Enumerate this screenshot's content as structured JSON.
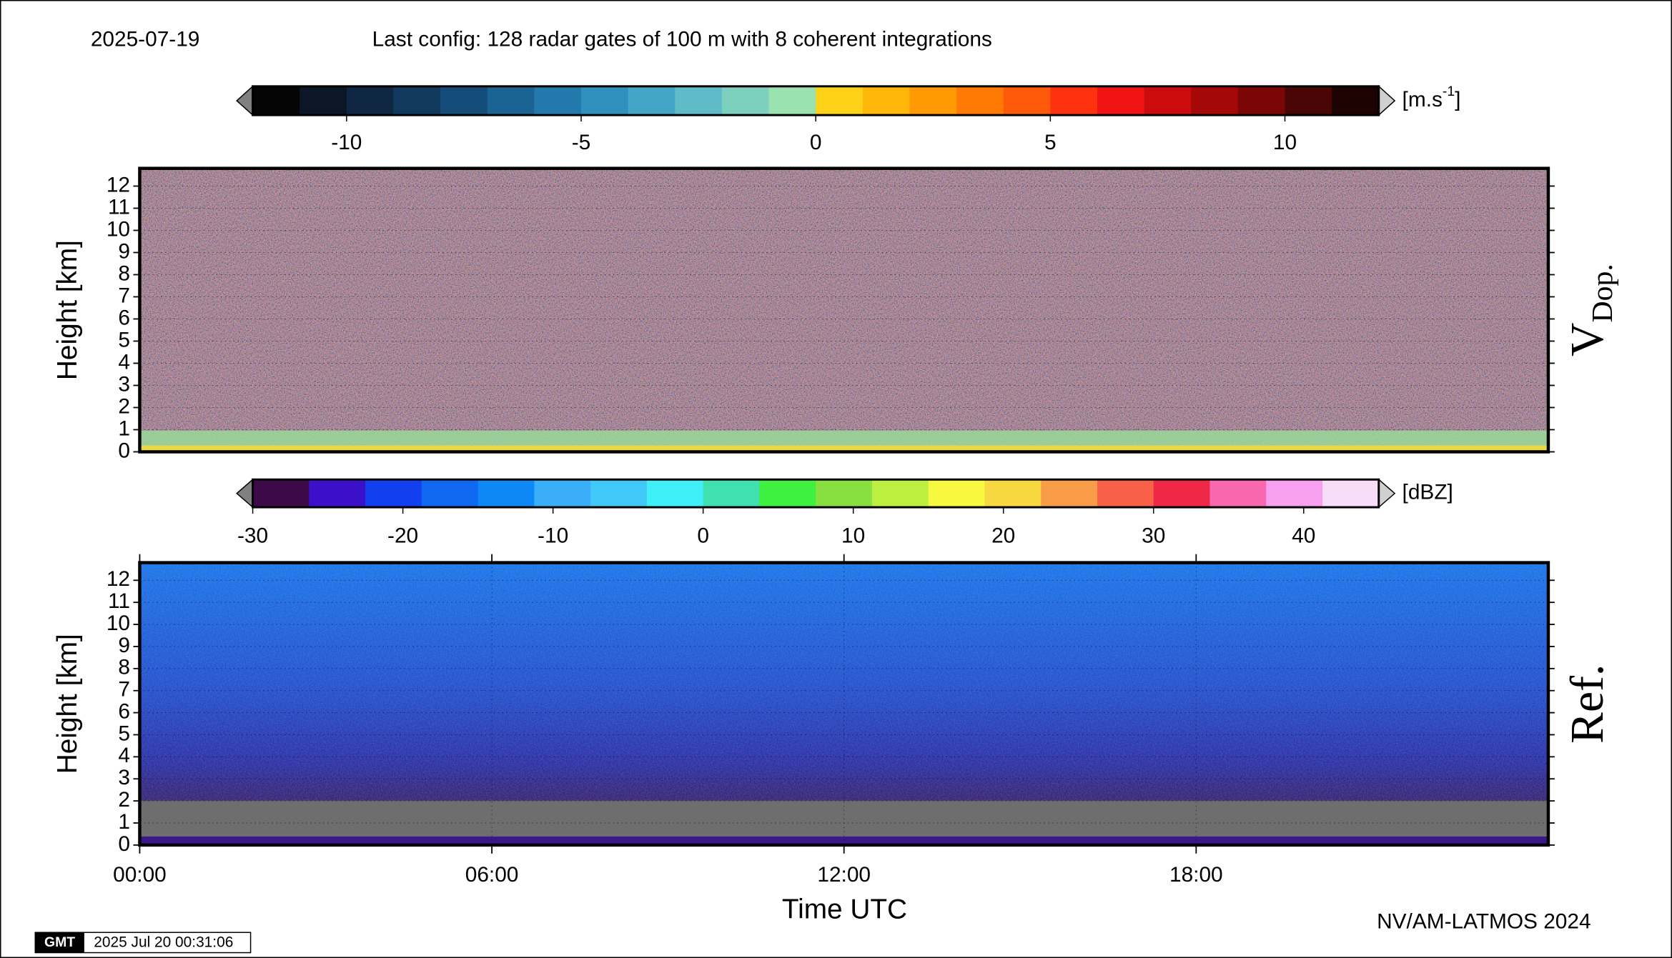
{
  "header": {
    "date": "2025-07-19",
    "config": "Last config: 128 radar gates of 100 m with 8 coherent integrations"
  },
  "chart_data": [
    {
      "type": "heatmap",
      "panel_label": "V",
      "panel_label_sub": "Dop.",
      "ylabel": "Height [km]",
      "ylim": [
        0,
        12.8
      ],
      "yticks": [
        0,
        1,
        2,
        3,
        4,
        5,
        6,
        7,
        8,
        9,
        10,
        11,
        12
      ],
      "grid": true,
      "colorbar": {
        "clim": [
          -12,
          12
        ],
        "ticks": [
          -10,
          -5,
          0,
          5,
          10
        ],
        "unit": "[m.s",
        "unit_sup": "-1",
        "unit_end": "]",
        "colors": [
          "#050505",
          "#0b1626",
          "#0f2742",
          "#123a5e",
          "#154d7a",
          "#1a6393",
          "#2379ab",
          "#2f90bd",
          "#44a6c7",
          "#5fbbc7",
          "#7dcfbe",
          "#9ae3b0",
          "#ffd21a",
          "#ffb80a",
          "#ff9a05",
          "#ff7a05",
          "#ff5a0a",
          "#ff320f",
          "#f01414",
          "#cc0c0c",
          "#a50808",
          "#7a0606",
          "#4a0505",
          "#1e0303"
        ]
      }
    },
    {
      "type": "heatmap",
      "panel_label": "Ref.",
      "ylabel": "Height [km]",
      "xlabel": "Time UTC",
      "ylim": [
        0,
        12.8
      ],
      "yticks": [
        0,
        1,
        2,
        3,
        4,
        5,
        6,
        7,
        8,
        9,
        10,
        11,
        12
      ],
      "grid": true,
      "xlim": [
        0,
        24
      ],
      "xticks": [
        {
          "value": 0,
          "label": "00:00"
        },
        {
          "value": 6,
          "label": "06:00"
        },
        {
          "value": 12,
          "label": "12:00"
        },
        {
          "value": 18,
          "label": "18:00"
        }
      ],
      "colorbar": {
        "clim": [
          -30,
          45
        ],
        "ticks": [
          -30,
          -20,
          -10,
          0,
          10,
          20,
          30,
          40
        ],
        "unit": "[dBZ]",
        "colors": [
          "#3d0a47",
          "#3a10c8",
          "#1240f0",
          "#1068f0",
          "#0e88f5",
          "#3aaef8",
          "#42c8f8",
          "#40f0f8",
          "#40e0b0",
          "#40f040",
          "#88e040",
          "#bcf040",
          "#f8f840",
          "#f8d840",
          "#f89c48",
          "#f86048",
          "#f02848",
          "#f868b0",
          "#f8a0f0",
          "#f8dcf8"
        ]
      }
    }
  ],
  "footer": {
    "credit": "NV/AM-LATMOS 2024",
    "logo": "GMT",
    "timestamp": "2025 Jul 20 00:31:06"
  }
}
